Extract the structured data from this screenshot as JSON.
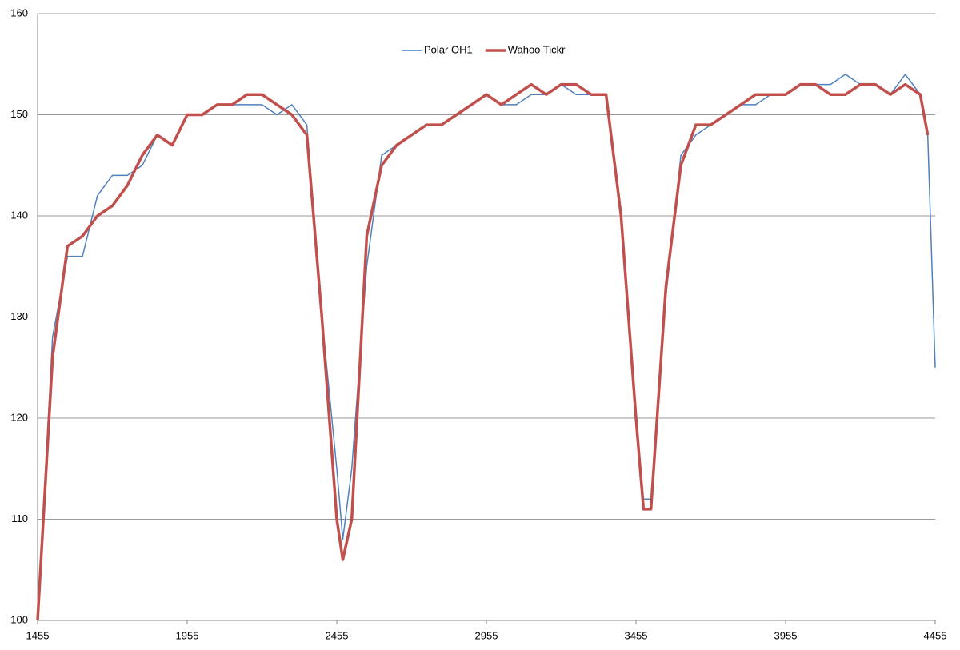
{
  "chart_data": {
    "type": "line",
    "x": [
      1455,
      1505,
      1555,
      1605,
      1655,
      1705,
      1755,
      1805,
      1855,
      1905,
      1955,
      2005,
      2055,
      2105,
      2155,
      2205,
      2255,
      2305,
      2355,
      2405,
      2455,
      2475,
      2505,
      2555,
      2605,
      2655,
      2705,
      2755,
      2805,
      2855,
      2905,
      2955,
      3005,
      3055,
      3105,
      3155,
      3205,
      3255,
      3305,
      3355,
      3405,
      3455,
      3480,
      3505,
      3555,
      3605,
      3655,
      3705,
      3755,
      3805,
      3855,
      3905,
      3955,
      4005,
      4055,
      4105,
      4155,
      4205,
      4255,
      4305,
      4355,
      4405,
      4430,
      4455
    ],
    "series": [
      {
        "name": "Polar OH1",
        "color": "#4f81bd",
        "values": [
          100,
          128,
          136,
          136,
          142,
          144,
          144,
          145,
          148,
          147,
          150,
          150,
          151,
          151,
          151,
          151,
          150,
          151,
          149,
          130,
          115,
          108,
          115,
          135,
          146,
          147,
          148,
          149,
          149,
          150,
          151,
          152,
          151,
          151,
          152,
          152,
          153,
          152,
          152,
          152,
          140,
          120,
          112,
          112,
          132,
          146,
          148,
          149,
          150,
          151,
          151,
          152,
          152,
          153,
          153,
          153,
          154,
          153,
          153,
          152,
          154,
          152,
          148,
          125
        ]
      },
      {
        "name": "Wahoo Tickr",
        "color": "#c0504d",
        "values": [
          100,
          126,
          137,
          138,
          140,
          141,
          143,
          146,
          148,
          147,
          150,
          150,
          151,
          151,
          152,
          152,
          151,
          150,
          148,
          130,
          110,
          106,
          110,
          138,
          145,
          147,
          148,
          149,
          149,
          150,
          151,
          152,
          151,
          152,
          153,
          152,
          153,
          153,
          152,
          152,
          140,
          120,
          111,
          111,
          133,
          145,
          149,
          149,
          150,
          151,
          152,
          152,
          152,
          153,
          153,
          152,
          152,
          153,
          153,
          152,
          153,
          152,
          148,
          null
        ]
      }
    ],
    "xlim": [
      1455,
      4455
    ],
    "xticks": [
      1455,
      1955,
      2455,
      2955,
      3455,
      3955,
      4455
    ],
    "ylim": [
      100,
      160
    ],
    "yticks": [
      100,
      110,
      120,
      130,
      140,
      150,
      160
    ],
    "grid": true,
    "legend": "top"
  }
}
